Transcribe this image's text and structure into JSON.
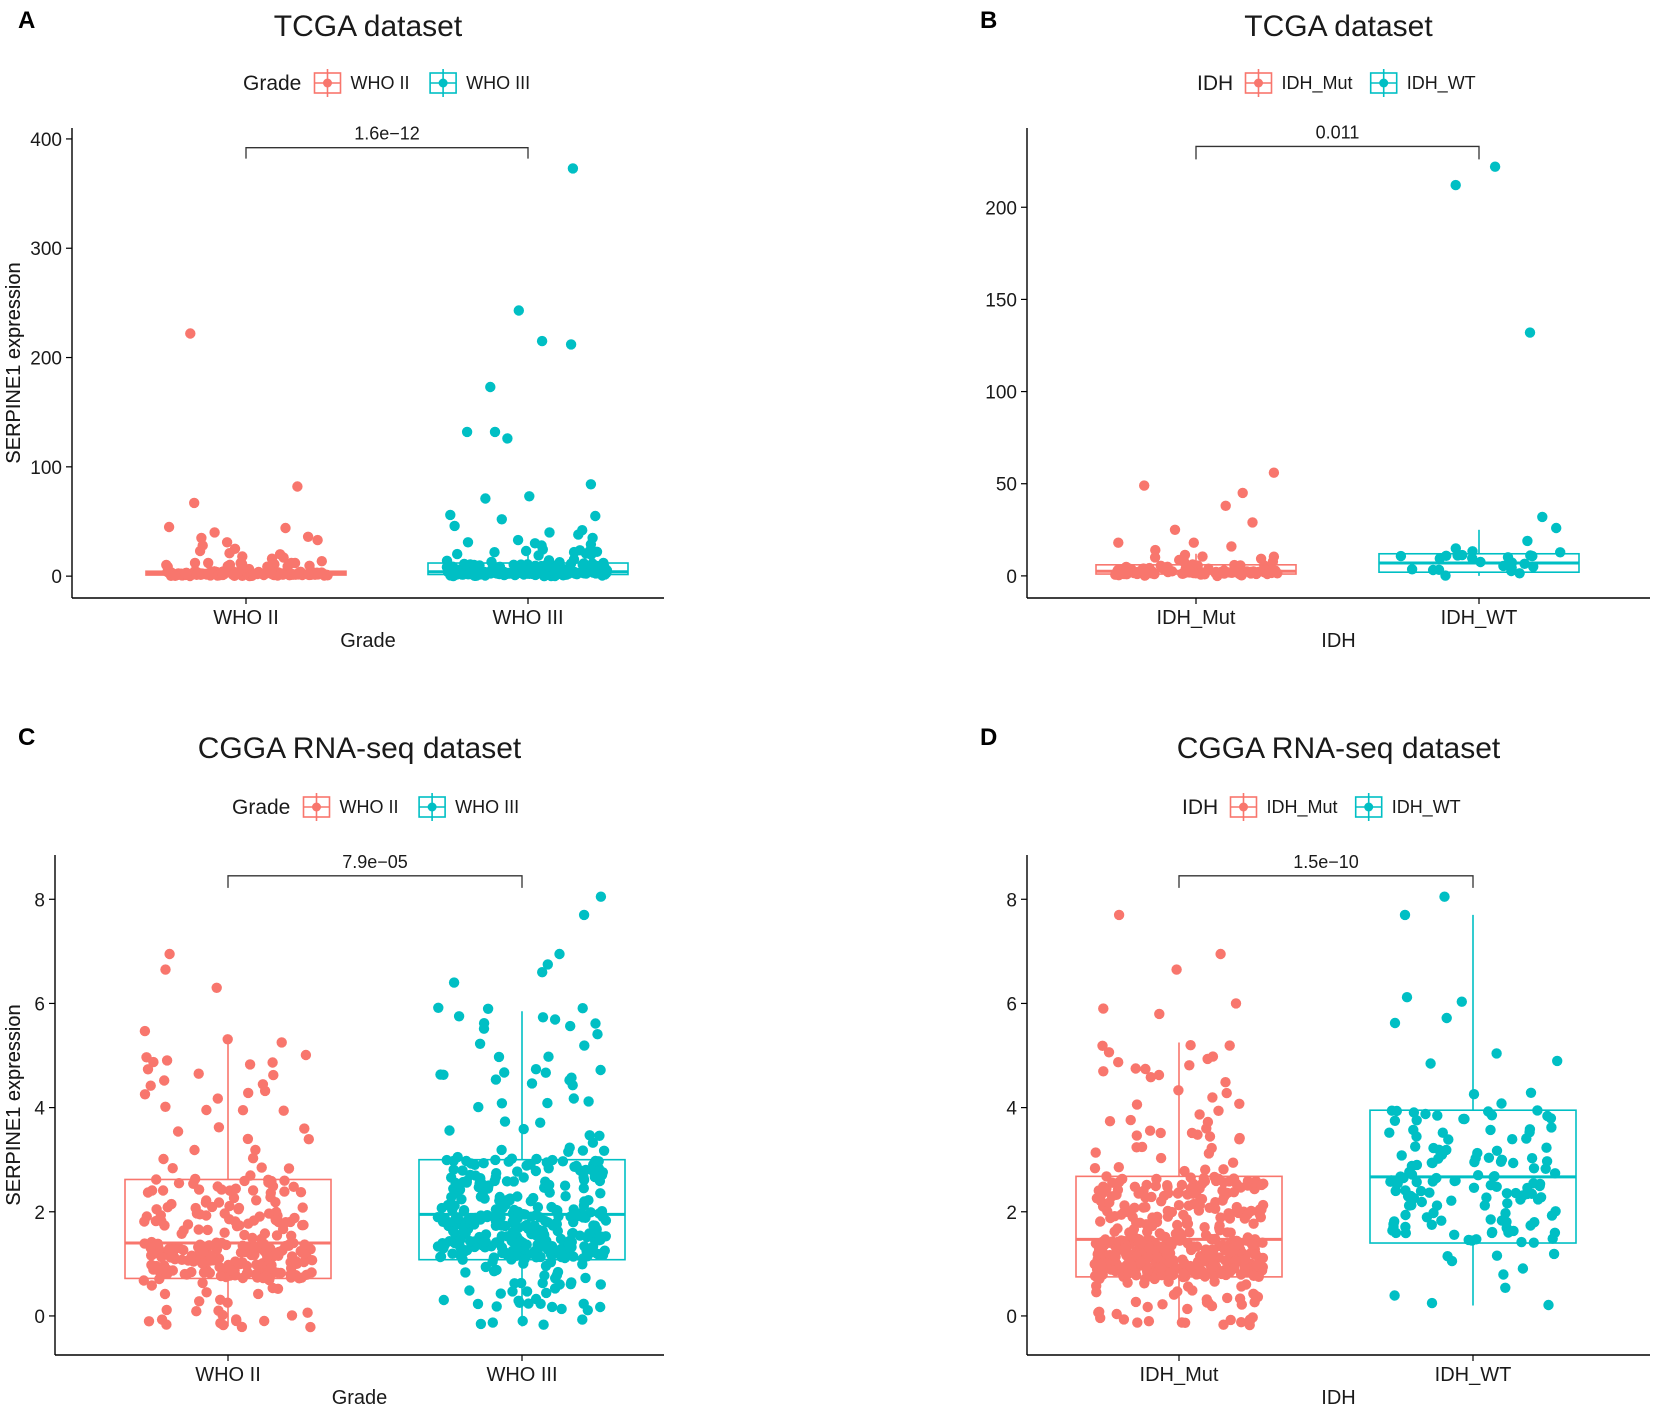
{
  "colors": {
    "group1": "#F8766D",
    "group2": "#00BFC4",
    "axis": "#000000",
    "text": "#1a1a1a"
  },
  "chart_data": [
    {
      "panel_label": "A",
      "type": "boxplot",
      "title": "TCGA dataset",
      "xlabel": "Grade",
      "ylabel": "SERPINE1 expression",
      "legend": {
        "title": "Grade",
        "entries": [
          "WHO II",
          "WHO III"
        ],
        "placement": "top-center"
      },
      "ylim": [
        -20,
        410
      ],
      "yticks": [
        0,
        100,
        200,
        300,
        400
      ],
      "yticklabels": [
        "0",
        "100",
        "200",
        "300",
        "400"
      ],
      "categories": [
        "WHO II",
        "WHO III"
      ],
      "boxes": [
        {
          "q1": 1.0,
          "median": 2.5,
          "q3": 4.5,
          "whisker_low": 0,
          "whisker_high": 9
        },
        {
          "q1": 1.5,
          "median": 4.0,
          "q3": 12.0,
          "whisker_low": 0,
          "whisker_high": 27
        }
      ],
      "jitter_n": [
        150,
        180
      ],
      "jitter_range": [
        [
          0,
          14
        ],
        [
          0,
          25
        ]
      ],
      "outliers": [
        [
          222,
          82,
          67,
          45,
          44,
          40,
          36,
          35,
          33,
          31,
          28,
          25,
          23,
          21,
          20,
          18,
          17,
          16
        ],
        [
          373,
          243,
          215,
          212,
          173,
          132,
          132,
          126,
          84,
          73,
          71,
          56,
          55,
          52,
          46,
          42,
          40,
          38,
          35,
          33,
          31,
          30,
          29,
          28
        ]
      ],
      "significance": {
        "text": "1.6e−12",
        "y": 392,
        "tick_down": 10
      }
    },
    {
      "panel_label": "B",
      "type": "boxplot",
      "title": "TCGA dataset",
      "xlabel": "IDH",
      "ylabel": "SERPINE1 expression",
      "legend": {
        "title": "IDH",
        "entries": [
          "IDH_Mut",
          "IDH_WT"
        ],
        "placement": "top-center"
      },
      "ylim": [
        -12,
        243
      ],
      "yticks": [
        0,
        50,
        100,
        150,
        200
      ],
      "yticklabels": [
        "0",
        "50",
        "100",
        "150",
        "200"
      ],
      "categories": [
        "IDH_Mut",
        "IDH_WT"
      ],
      "boxes": [
        {
          "q1": 1.0,
          "median": 2.5,
          "q3": 6.0,
          "whisker_low": 0,
          "whisker_high": 12
        },
        {
          "q1": 2.0,
          "median": 7.0,
          "q3": 12.0,
          "whisker_low": 0,
          "whisker_high": 25
        }
      ],
      "jitter_n": [
        110,
        24
      ],
      "jitter_range": [
        [
          0,
          12
        ],
        [
          0,
          16
        ]
      ],
      "outliers": [
        [
          56,
          49,
          45,
          38,
          29,
          25,
          18,
          18,
          16,
          14
        ],
        [
          222,
          212,
          132,
          32,
          26,
          19
        ]
      ],
      "significance": {
        "text": "0.011",
        "y": 233,
        "tick_down": 7
      }
    },
    {
      "panel_label": "C",
      "type": "boxplot",
      "title": "CGGA RNA-seq dataset",
      "xlabel": "Grade",
      "ylabel": "SERPINE1 expression",
      "legend": {
        "title": "Grade",
        "entries": [
          "WHO II",
          "WHO III"
        ],
        "placement": "top-center"
      },
      "ylim": [
        -0.75,
        8.85
      ],
      "yticks": [
        0,
        2,
        4,
        6,
        8
      ],
      "yticklabels": [
        "0",
        "2",
        "4",
        "6",
        "8"
      ],
      "categories": [
        "WHO II",
        "WHO III"
      ],
      "boxes": [
        {
          "q1": 0.72,
          "median": 1.4,
          "q3": 2.62,
          "whisker_low": -0.2,
          "whisker_high": 5.3
        },
        {
          "q1": 1.08,
          "median": 1.95,
          "q3": 3.0,
          "whisker_low": -0.2,
          "whisker_high": 5.85
        }
      ],
      "jitter_n": [
        300,
        380
      ],
      "jitter_range": [
        [
          -0.25,
          5.5
        ],
        [
          -0.2,
          6.0
        ]
      ],
      "outliers": [
        [
          6.95,
          6.65,
          6.3
        ],
        [
          8.05,
          7.7,
          6.95,
          6.75,
          6.6,
          6.4
        ]
      ],
      "significance": {
        "text": "7.9e−05",
        "y": 8.45,
        "tick_down": 0.23
      }
    },
    {
      "panel_label": "D",
      "type": "boxplot",
      "title": "CGGA RNA-seq dataset",
      "xlabel": "IDH",
      "ylabel": "SERPINE1 expression",
      "legend": {
        "title": "IDH",
        "entries": [
          "IDH_Mut",
          "IDH_WT"
        ],
        "placement": "top-center"
      },
      "ylim": [
        -0.75,
        8.85
      ],
      "yticks": [
        0,
        2,
        4,
        6,
        8
      ],
      "yticklabels": [
        "0",
        "2",
        "4",
        "6",
        "8"
      ],
      "categories": [
        "IDH_Mut",
        "IDH_WT"
      ],
      "boxes": [
        {
          "q1": 0.75,
          "median": 1.47,
          "q3": 2.68,
          "whisker_low": -0.2,
          "whisker_high": 5.25
        },
        {
          "q1": 1.4,
          "median": 2.67,
          "q3": 3.95,
          "whisker_low": 0.2,
          "whisker_high": 7.7
        }
      ],
      "jitter_n": [
        480,
        150
      ],
      "jitter_range": [
        [
          -0.25,
          5.4
        ],
        [
          0.2,
          6.7
        ]
      ],
      "outliers": [
        [
          7.7,
          6.95,
          6.65,
          6.0,
          5.9,
          5.8
        ],
        [
          8.05,
          7.7
        ]
      ],
      "significance": {
        "text": "1.5e−10",
        "y": 8.45,
        "tick_down": 0.23
      }
    }
  ]
}
